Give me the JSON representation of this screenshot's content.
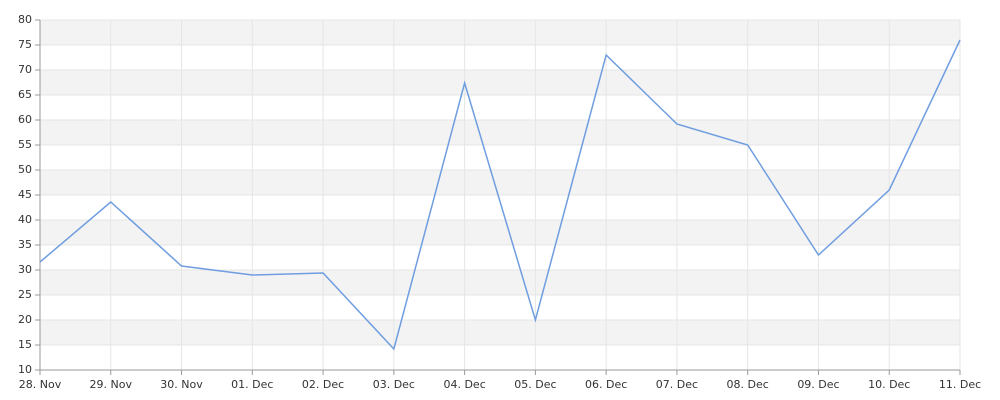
{
  "chart_data": {
    "type": "line",
    "categories": [
      "28. Nov",
      "29. Nov",
      "30. Nov",
      "01. Dec",
      "02. Dec",
      "03. Dec",
      "04. Dec",
      "05. Dec",
      "06. Dec",
      "07. Dec",
      "08. Dec",
      "09. Dec",
      "10. Dec",
      "11. Dec"
    ],
    "series": [
      {
        "color": "#6f9de0",
        "values": [
          31.6,
          43.6,
          30.8,
          29,
          29.4,
          14.2,
          67.4,
          20,
          73,
          59.2,
          55,
          33,
          46,
          76
        ]
      }
    ],
    "ylim": [
      10,
      80
    ],
    "yticks": [
      10,
      15,
      20,
      25,
      30,
      35,
      40,
      45,
      50,
      55,
      60,
      65,
      70,
      75,
      80
    ],
    "grid": true
  }
}
